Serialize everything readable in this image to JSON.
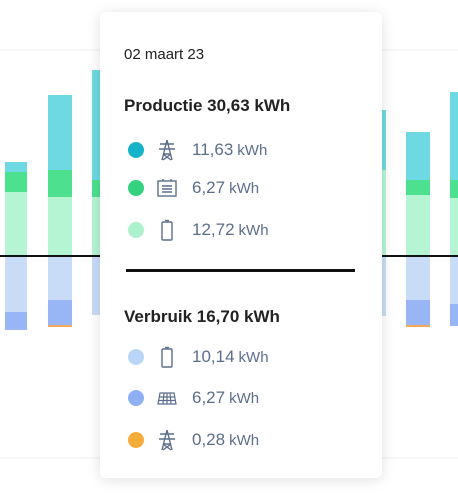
{
  "tooltip": {
    "date": "02 maart 23",
    "production": {
      "title": "Productie 30,63 kWh",
      "items": [
        {
          "value": "11,63",
          "unit": "kWh"
        },
        {
          "value": "6,27",
          "unit": "kWh"
        },
        {
          "value": "12,72",
          "unit": "kWh"
        }
      ]
    },
    "consumption": {
      "title": "Verbruik 16,70 kWh",
      "items": [
        {
          "value": "10,14",
          "unit": "kWh"
        },
        {
          "value": "6,27",
          "unit": "kWh"
        },
        {
          "value": "0,28",
          "unit": "kWh"
        }
      ]
    }
  }
}
